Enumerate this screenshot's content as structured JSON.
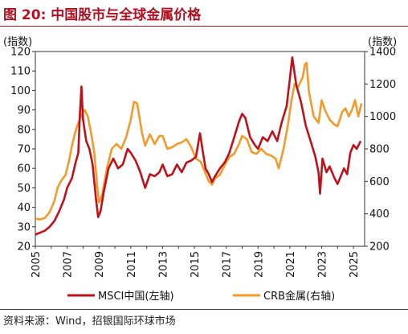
{
  "figure": {
    "title": "图 20: 中国股市与全球金属价格",
    "source": "资料来源：Wind，招银国际环球市场"
  },
  "colors": {
    "title": "#b01020",
    "msci": "#c0101a",
    "crb": "#f39a2b",
    "axis": "#333333"
  },
  "chart_data": {
    "type": "line",
    "y_left": {
      "unit": "(指数)",
      "range": [
        20,
        120
      ],
      "ticks": [
        20,
        30,
        40,
        50,
        60,
        70,
        80,
        90,
        100,
        110,
        120
      ]
    },
    "y_right": {
      "unit": "(指数)",
      "range": [
        200,
        1400
      ],
      "ticks": [
        200,
        400,
        600,
        800,
        1000,
        1200,
        1400
      ]
    },
    "x": {
      "range": [
        2005,
        2025.7
      ],
      "ticks": [
        "2005",
        "2007",
        "2009",
        "2011",
        "2013",
        "2015",
        "2017",
        "2019",
        "2021",
        "2023",
        "2025"
      ]
    },
    "legend_position": "bottom",
    "series": [
      {
        "name": "MSCI中国(左轴)",
        "axis": "left",
        "points": [
          [
            2005.0,
            26
          ],
          [
            2005.3,
            27
          ],
          [
            2005.6,
            28
          ],
          [
            2005.9,
            30
          ],
          [
            2006.2,
            33
          ],
          [
            2006.5,
            38
          ],
          [
            2006.8,
            44
          ],
          [
            2007.0,
            50
          ],
          [
            2007.3,
            55
          ],
          [
            2007.5,
            62
          ],
          [
            2007.7,
            68
          ],
          [
            2007.8,
            88
          ],
          [
            2007.9,
            102
          ],
          [
            2008.0,
            85
          ],
          [
            2008.2,
            74
          ],
          [
            2008.4,
            70
          ],
          [
            2008.6,
            62
          ],
          [
            2008.8,
            45
          ],
          [
            2008.95,
            35
          ],
          [
            2009.1,
            38
          ],
          [
            2009.3,
            48
          ],
          [
            2009.6,
            60
          ],
          [
            2009.9,
            65
          ],
          [
            2010.2,
            60
          ],
          [
            2010.5,
            62
          ],
          [
            2010.8,
            70
          ],
          [
            2011.0,
            68
          ],
          [
            2011.3,
            64
          ],
          [
            2011.6,
            58
          ],
          [
            2011.9,
            50
          ],
          [
            2012.2,
            57
          ],
          [
            2012.5,
            56
          ],
          [
            2012.8,
            58
          ],
          [
            2013.0,
            62
          ],
          [
            2013.3,
            56
          ],
          [
            2013.6,
            57
          ],
          [
            2013.9,
            62
          ],
          [
            2014.2,
            58
          ],
          [
            2014.5,
            63
          ],
          [
            2014.8,
            64
          ],
          [
            2015.1,
            66
          ],
          [
            2015.35,
            78
          ],
          [
            2015.5,
            70
          ],
          [
            2015.7,
            60
          ],
          [
            2015.9,
            57
          ],
          [
            2016.1,
            53
          ],
          [
            2016.3,
            56
          ],
          [
            2016.6,
            60
          ],
          [
            2016.9,
            63
          ],
          [
            2017.2,
            68
          ],
          [
            2017.5,
            76
          ],
          [
            2017.8,
            84
          ],
          [
            2018.0,
            88
          ],
          [
            2018.2,
            86
          ],
          [
            2018.5,
            76
          ],
          [
            2018.8,
            72
          ],
          [
            2019.0,
            70
          ],
          [
            2019.3,
            76
          ],
          [
            2019.6,
            74
          ],
          [
            2019.9,
            79
          ],
          [
            2020.2,
            74
          ],
          [
            2020.5,
            84
          ],
          [
            2020.8,
            92
          ],
          [
            2021.0,
            106
          ],
          [
            2021.15,
            117
          ],
          [
            2021.4,
            103
          ],
          [
            2021.7,
            94
          ],
          [
            2022.0,
            82
          ],
          [
            2022.3,
            74
          ],
          [
            2022.6,
            66
          ],
          [
            2022.8,
            58
          ],
          [
            2022.9,
            47
          ],
          [
            2023.05,
            65
          ],
          [
            2023.3,
            58
          ],
          [
            2023.5,
            61
          ],
          [
            2023.8,
            55
          ],
          [
            2024.0,
            52
          ],
          [
            2024.2,
            56
          ],
          [
            2024.4,
            60
          ],
          [
            2024.6,
            57
          ],
          [
            2024.8,
            68
          ],
          [
            2025.0,
            72
          ],
          [
            2025.2,
            70
          ],
          [
            2025.45,
            74
          ]
        ]
      },
      {
        "name": "CRB金属(右轴)",
        "axis": "right",
        "points": [
          [
            2005.0,
            370
          ],
          [
            2005.3,
            365
          ],
          [
            2005.6,
            375
          ],
          [
            2005.9,
            410
          ],
          [
            2006.2,
            480
          ],
          [
            2006.4,
            560
          ],
          [
            2006.6,
            600
          ],
          [
            2006.9,
            640
          ],
          [
            2007.1,
            720
          ],
          [
            2007.3,
            820
          ],
          [
            2007.5,
            900
          ],
          [
            2007.7,
            960
          ],
          [
            2007.9,
            1010
          ],
          [
            2008.1,
            1040
          ],
          [
            2008.3,
            1000
          ],
          [
            2008.5,
            900
          ],
          [
            2008.7,
            780
          ],
          [
            2008.9,
            560
          ],
          [
            2009.0,
            470
          ],
          [
            2009.2,
            520
          ],
          [
            2009.5,
            680
          ],
          [
            2009.8,
            800
          ],
          [
            2010.1,
            830
          ],
          [
            2010.4,
            800
          ],
          [
            2010.7,
            870
          ],
          [
            2011.0,
            980
          ],
          [
            2011.2,
            1090
          ],
          [
            2011.4,
            1080
          ],
          [
            2011.7,
            900
          ],
          [
            2011.9,
            820
          ],
          [
            2012.2,
            890
          ],
          [
            2012.5,
            830
          ],
          [
            2012.8,
            880
          ],
          [
            2013.0,
            880
          ],
          [
            2013.3,
            800
          ],
          [
            2013.6,
            810
          ],
          [
            2013.9,
            830
          ],
          [
            2014.2,
            840
          ],
          [
            2014.5,
            860
          ],
          [
            2014.8,
            810
          ],
          [
            2015.1,
            740
          ],
          [
            2015.4,
            720
          ],
          [
            2015.7,
            650
          ],
          [
            2015.9,
            600
          ],
          [
            2016.1,
            580
          ],
          [
            2016.3,
            620
          ],
          [
            2016.6,
            640
          ],
          [
            2016.9,
            700
          ],
          [
            2017.2,
            750
          ],
          [
            2017.5,
            770
          ],
          [
            2017.8,
            830
          ],
          [
            2018.0,
            880
          ],
          [
            2018.3,
            860
          ],
          [
            2018.6,
            780
          ],
          [
            2018.9,
            770
          ],
          [
            2019.2,
            800
          ],
          [
            2019.5,
            770
          ],
          [
            2019.8,
            760
          ],
          [
            2020.1,
            740
          ],
          [
            2020.3,
            680
          ],
          [
            2020.6,
            800
          ],
          [
            2020.9,
            960
          ],
          [
            2021.1,
            1100
          ],
          [
            2021.3,
            1200
          ],
          [
            2021.5,
            1180
          ],
          [
            2021.8,
            1240
          ],
          [
            2021.95,
            1320
          ],
          [
            2022.05,
            1330
          ],
          [
            2022.2,
            1150
          ],
          [
            2022.5,
            1000
          ],
          [
            2022.8,
            960
          ],
          [
            2023.0,
            1100
          ],
          [
            2023.2,
            1040
          ],
          [
            2023.5,
            980
          ],
          [
            2023.8,
            950
          ],
          [
            2024.0,
            940
          ],
          [
            2024.3,
            1030
          ],
          [
            2024.5,
            1050
          ],
          [
            2024.7,
            1000
          ],
          [
            2024.9,
            1040
          ],
          [
            2025.1,
            1100
          ],
          [
            2025.3,
            1000
          ],
          [
            2025.5,
            1080
          ]
        ]
      }
    ]
  }
}
